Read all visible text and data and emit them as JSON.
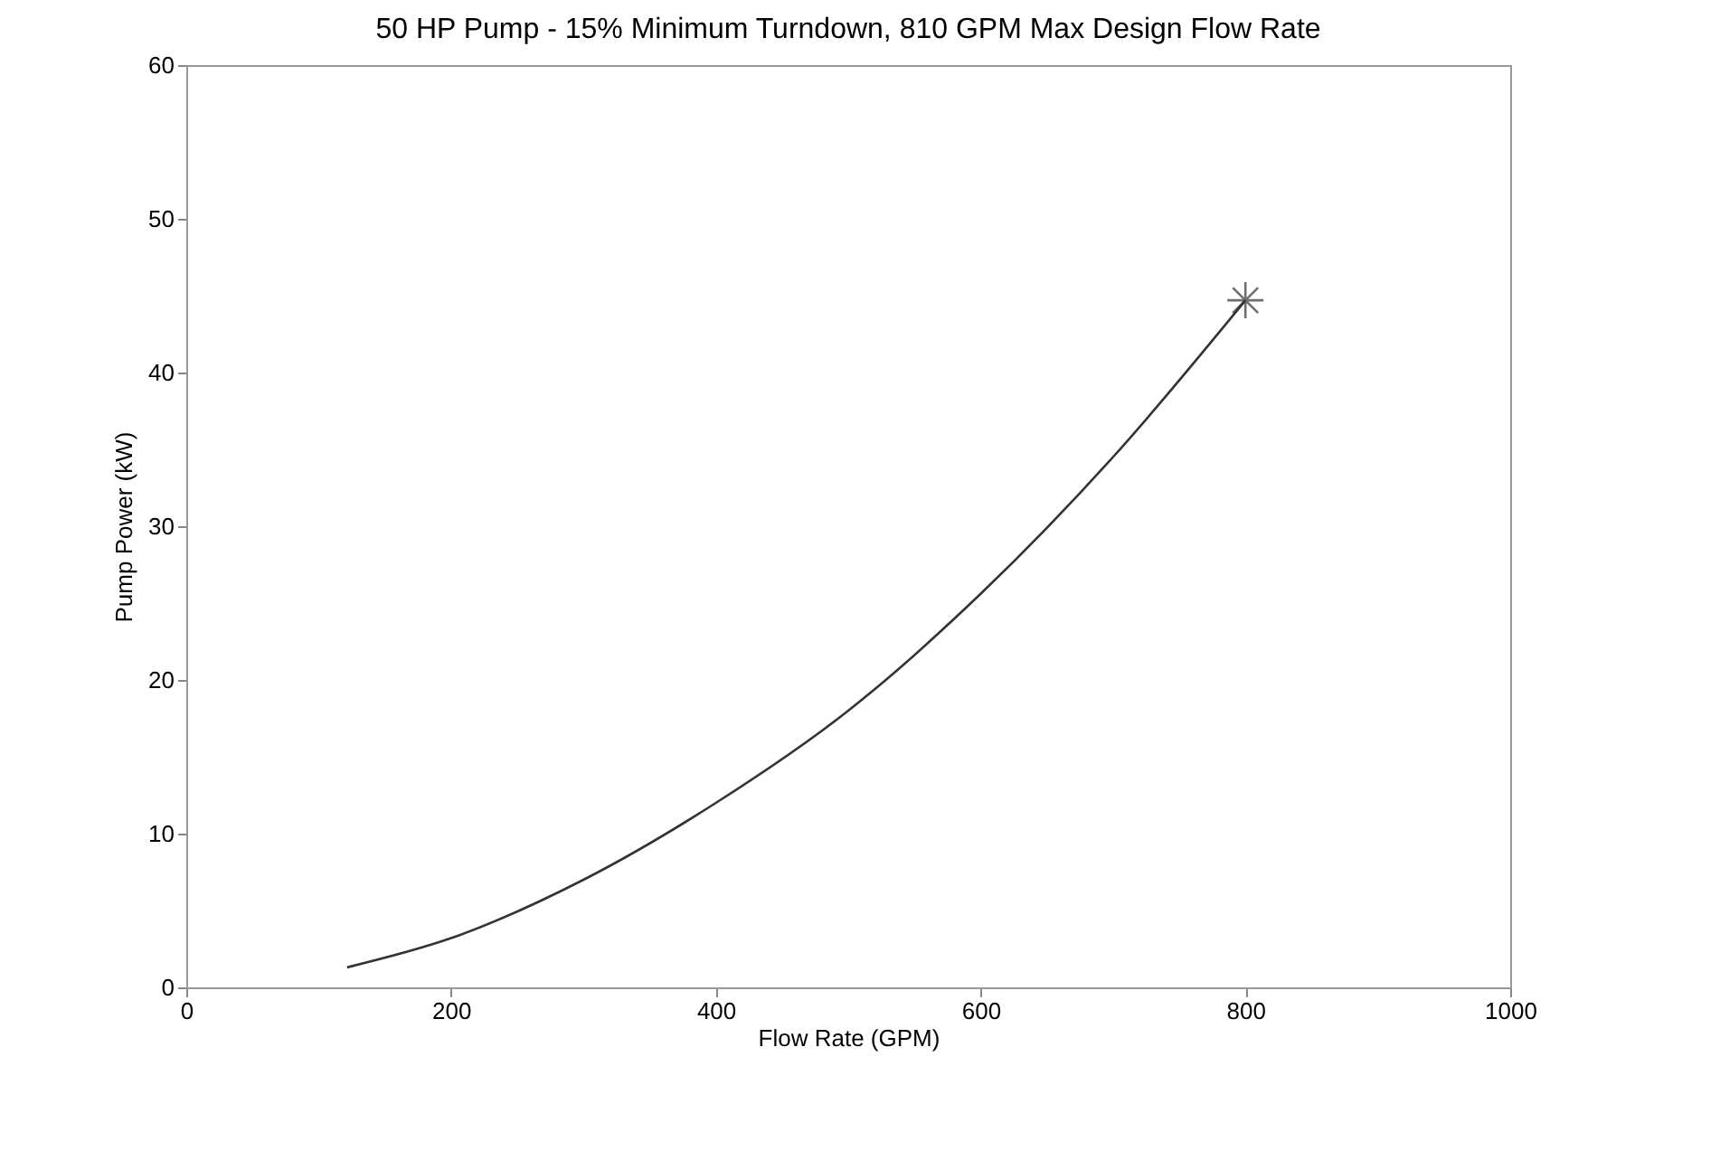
{
  "chart_data": {
    "type": "line",
    "title": "50 HP Pump - 15% Minimum Turndown, 810 GPM Max Design Flow Rate",
    "xlabel": "Flow Rate (GPM)",
    "ylabel": "Pump Power (kW)",
    "xlim": [
      0,
      1000
    ],
    "xticks": [
      0,
      200,
      400,
      600,
      800,
      1000
    ],
    "ylim": [
      0,
      60
    ],
    "yticks": [
      0,
      10,
      20,
      30,
      40,
      50,
      60
    ],
    "grid": false,
    "series": [
      {
        "color": "#333333",
        "x": [
          121.5,
          200,
          300,
          400,
          500,
          600,
          700,
          800
        ],
        "values": [
          1.3,
          3.2,
          7,
          12,
          18,
          25.6,
          34.5,
          44.7
        ]
      },
      {
        "type": "scatter",
        "marker": "cross",
        "color": "#333333",
        "x": [
          800
        ],
        "values": [
          44.7
        ]
      }
    ]
  }
}
